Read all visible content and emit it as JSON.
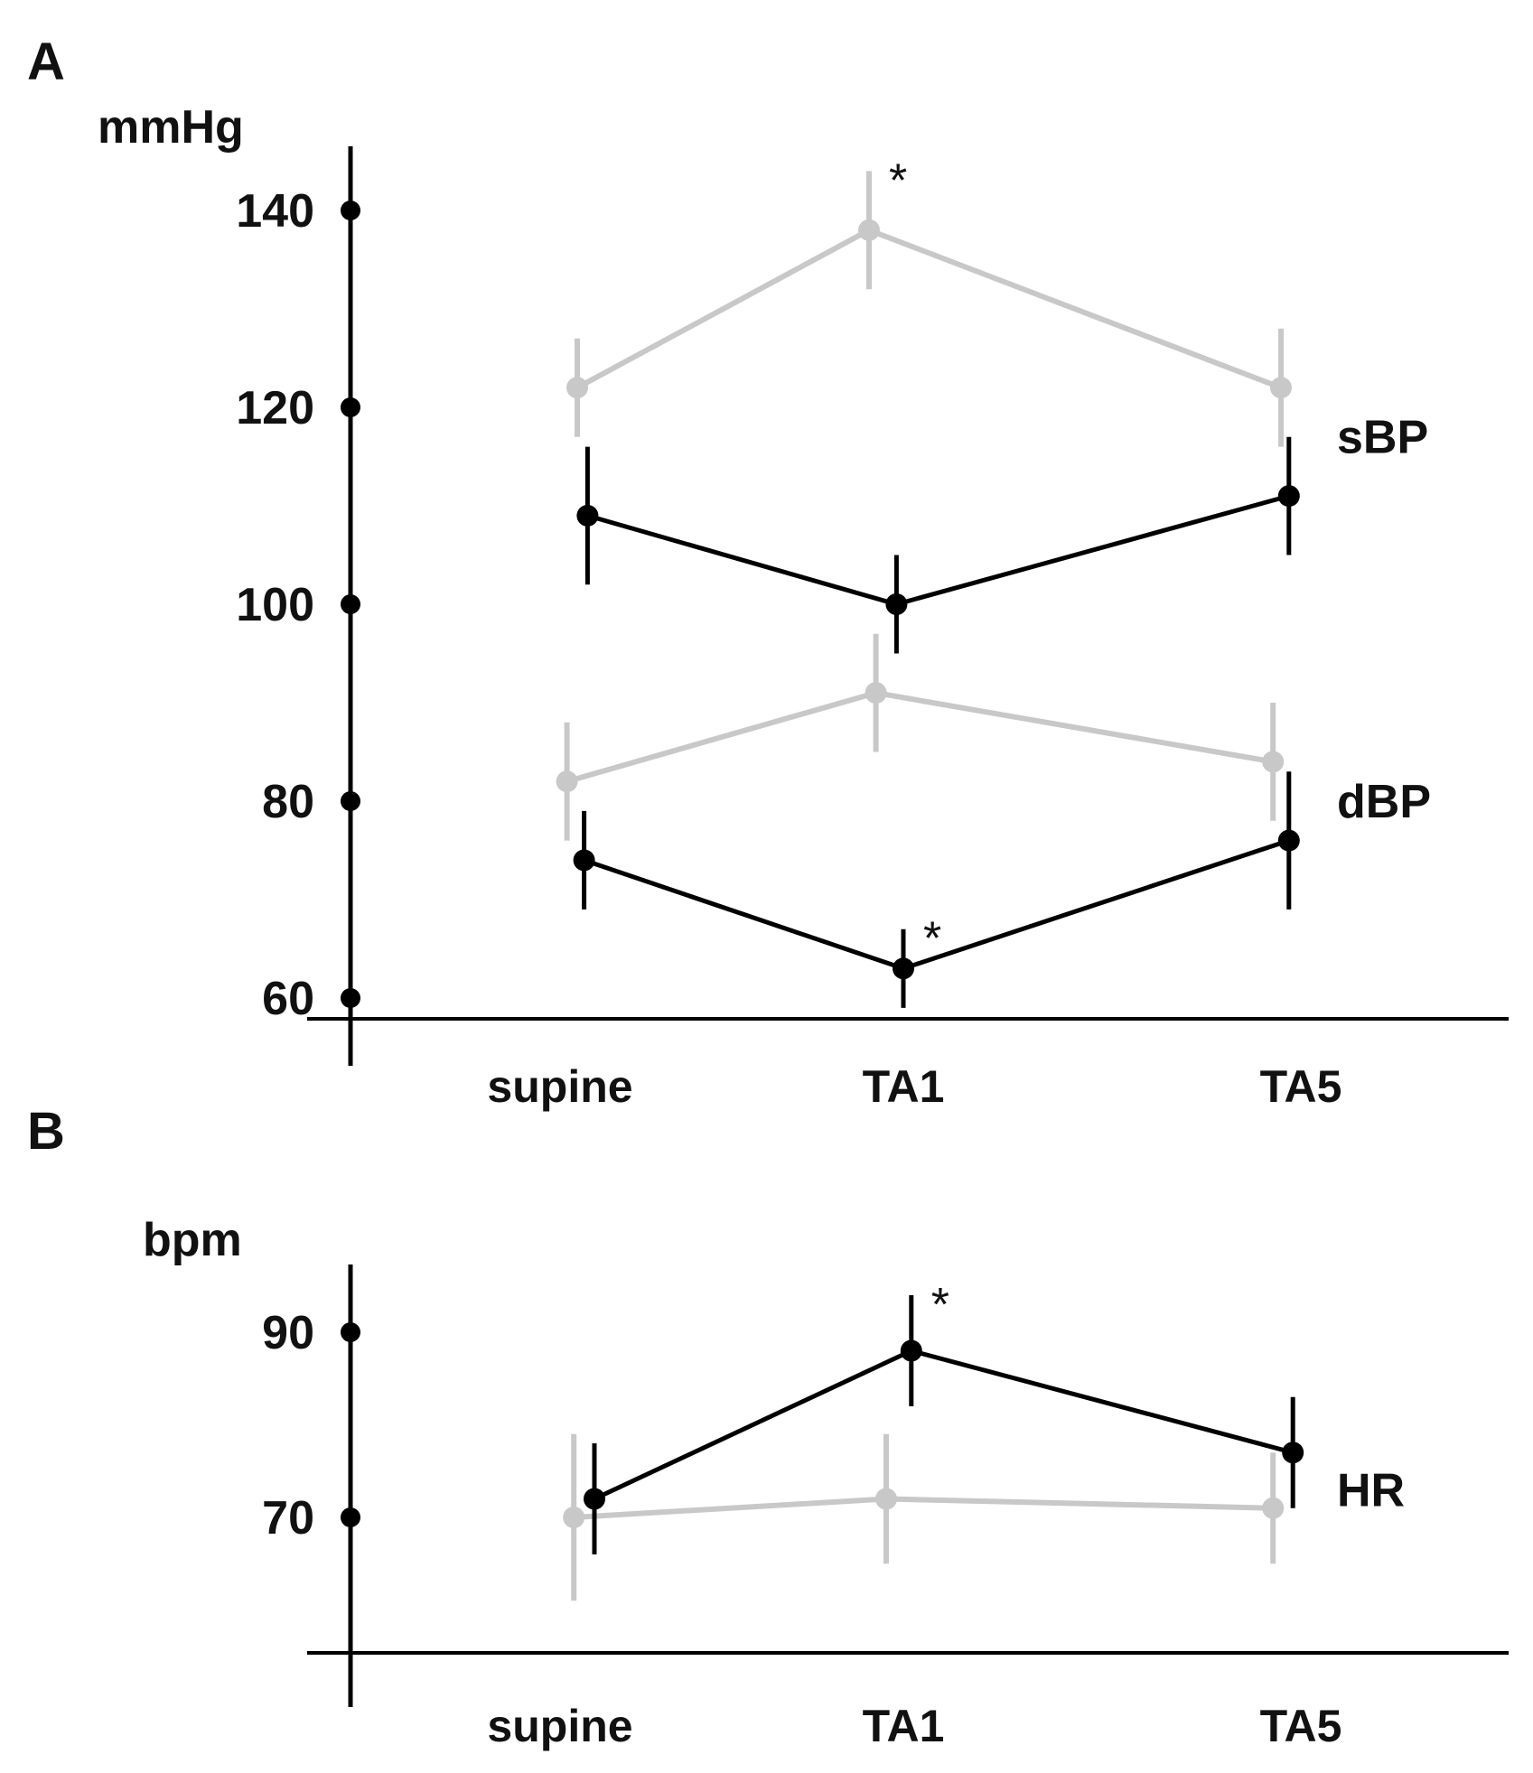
{
  "chart_data": [
    {
      "panel": "A",
      "type": "line",
      "ylabel": "mmHg",
      "ylim": [
        56,
        148
      ],
      "yticks": [
        60,
        80,
        100,
        120,
        140
      ],
      "categories": [
        "supine",
        "TA1",
        "TA5"
      ],
      "series": [
        {
          "name": "sBP",
          "group": "sBP",
          "color": "#c8c8c8",
          "x": [
            0.05,
            0.9,
            1.95
          ],
          "values": [
            122,
            138,
            122
          ],
          "errors": [
            5,
            6,
            6
          ]
        },
        {
          "name": "sBP",
          "group": "sBP",
          "color": "#000000",
          "x": [
            0.08,
            0.98,
            1.97
          ],
          "values": [
            109,
            100,
            111
          ],
          "errors": [
            7,
            5,
            6
          ]
        },
        {
          "name": "dBP",
          "group": "dBP",
          "color": "#c8c8c8",
          "x": [
            0.02,
            0.92,
            1.93
          ],
          "values": [
            82,
            91,
            84
          ],
          "errors": [
            6,
            6,
            6
          ]
        },
        {
          "name": "dBP",
          "group": "dBP",
          "color": "#000000",
          "x": [
            0.07,
            1.0,
            1.97
          ],
          "values": [
            74,
            63,
            76
          ],
          "errors": [
            5,
            4,
            7
          ]
        }
      ],
      "series_labels": [
        {
          "text": "sBP",
          "value": 117
        },
        {
          "text": "dBP",
          "value": 80
        }
      ],
      "annotations": [
        {
          "text": "*",
          "series_index": 0,
          "point_index": 1
        },
        {
          "text": "*",
          "series_index": 3,
          "point_index": 1
        }
      ]
    },
    {
      "panel": "B",
      "type": "line",
      "ylabel": "bpm",
      "ylim": [
        56,
        96
      ],
      "yticks": [
        70,
        90
      ],
      "categories": [
        "supine",
        "TA1",
        "TA5"
      ],
      "series": [
        {
          "name": "HR",
          "group": "HR",
          "color": "#c8c8c8",
          "x": [
            0.04,
            0.95,
            1.93
          ],
          "values": [
            70,
            72,
            71
          ],
          "errors": [
            9,
            7,
            6
          ]
        },
        {
          "name": "HR",
          "group": "HR",
          "color": "#000000",
          "x": [
            0.1,
            1.02,
            1.98
          ],
          "values": [
            72,
            88,
            77
          ],
          "errors": [
            6,
            6,
            6
          ]
        }
      ],
      "series_labels": [
        {
          "text": "HR",
          "value": 73
        }
      ],
      "annotations": [
        {
          "text": "*",
          "series_index": 1,
          "point_index": 1
        }
      ]
    }
  ]
}
